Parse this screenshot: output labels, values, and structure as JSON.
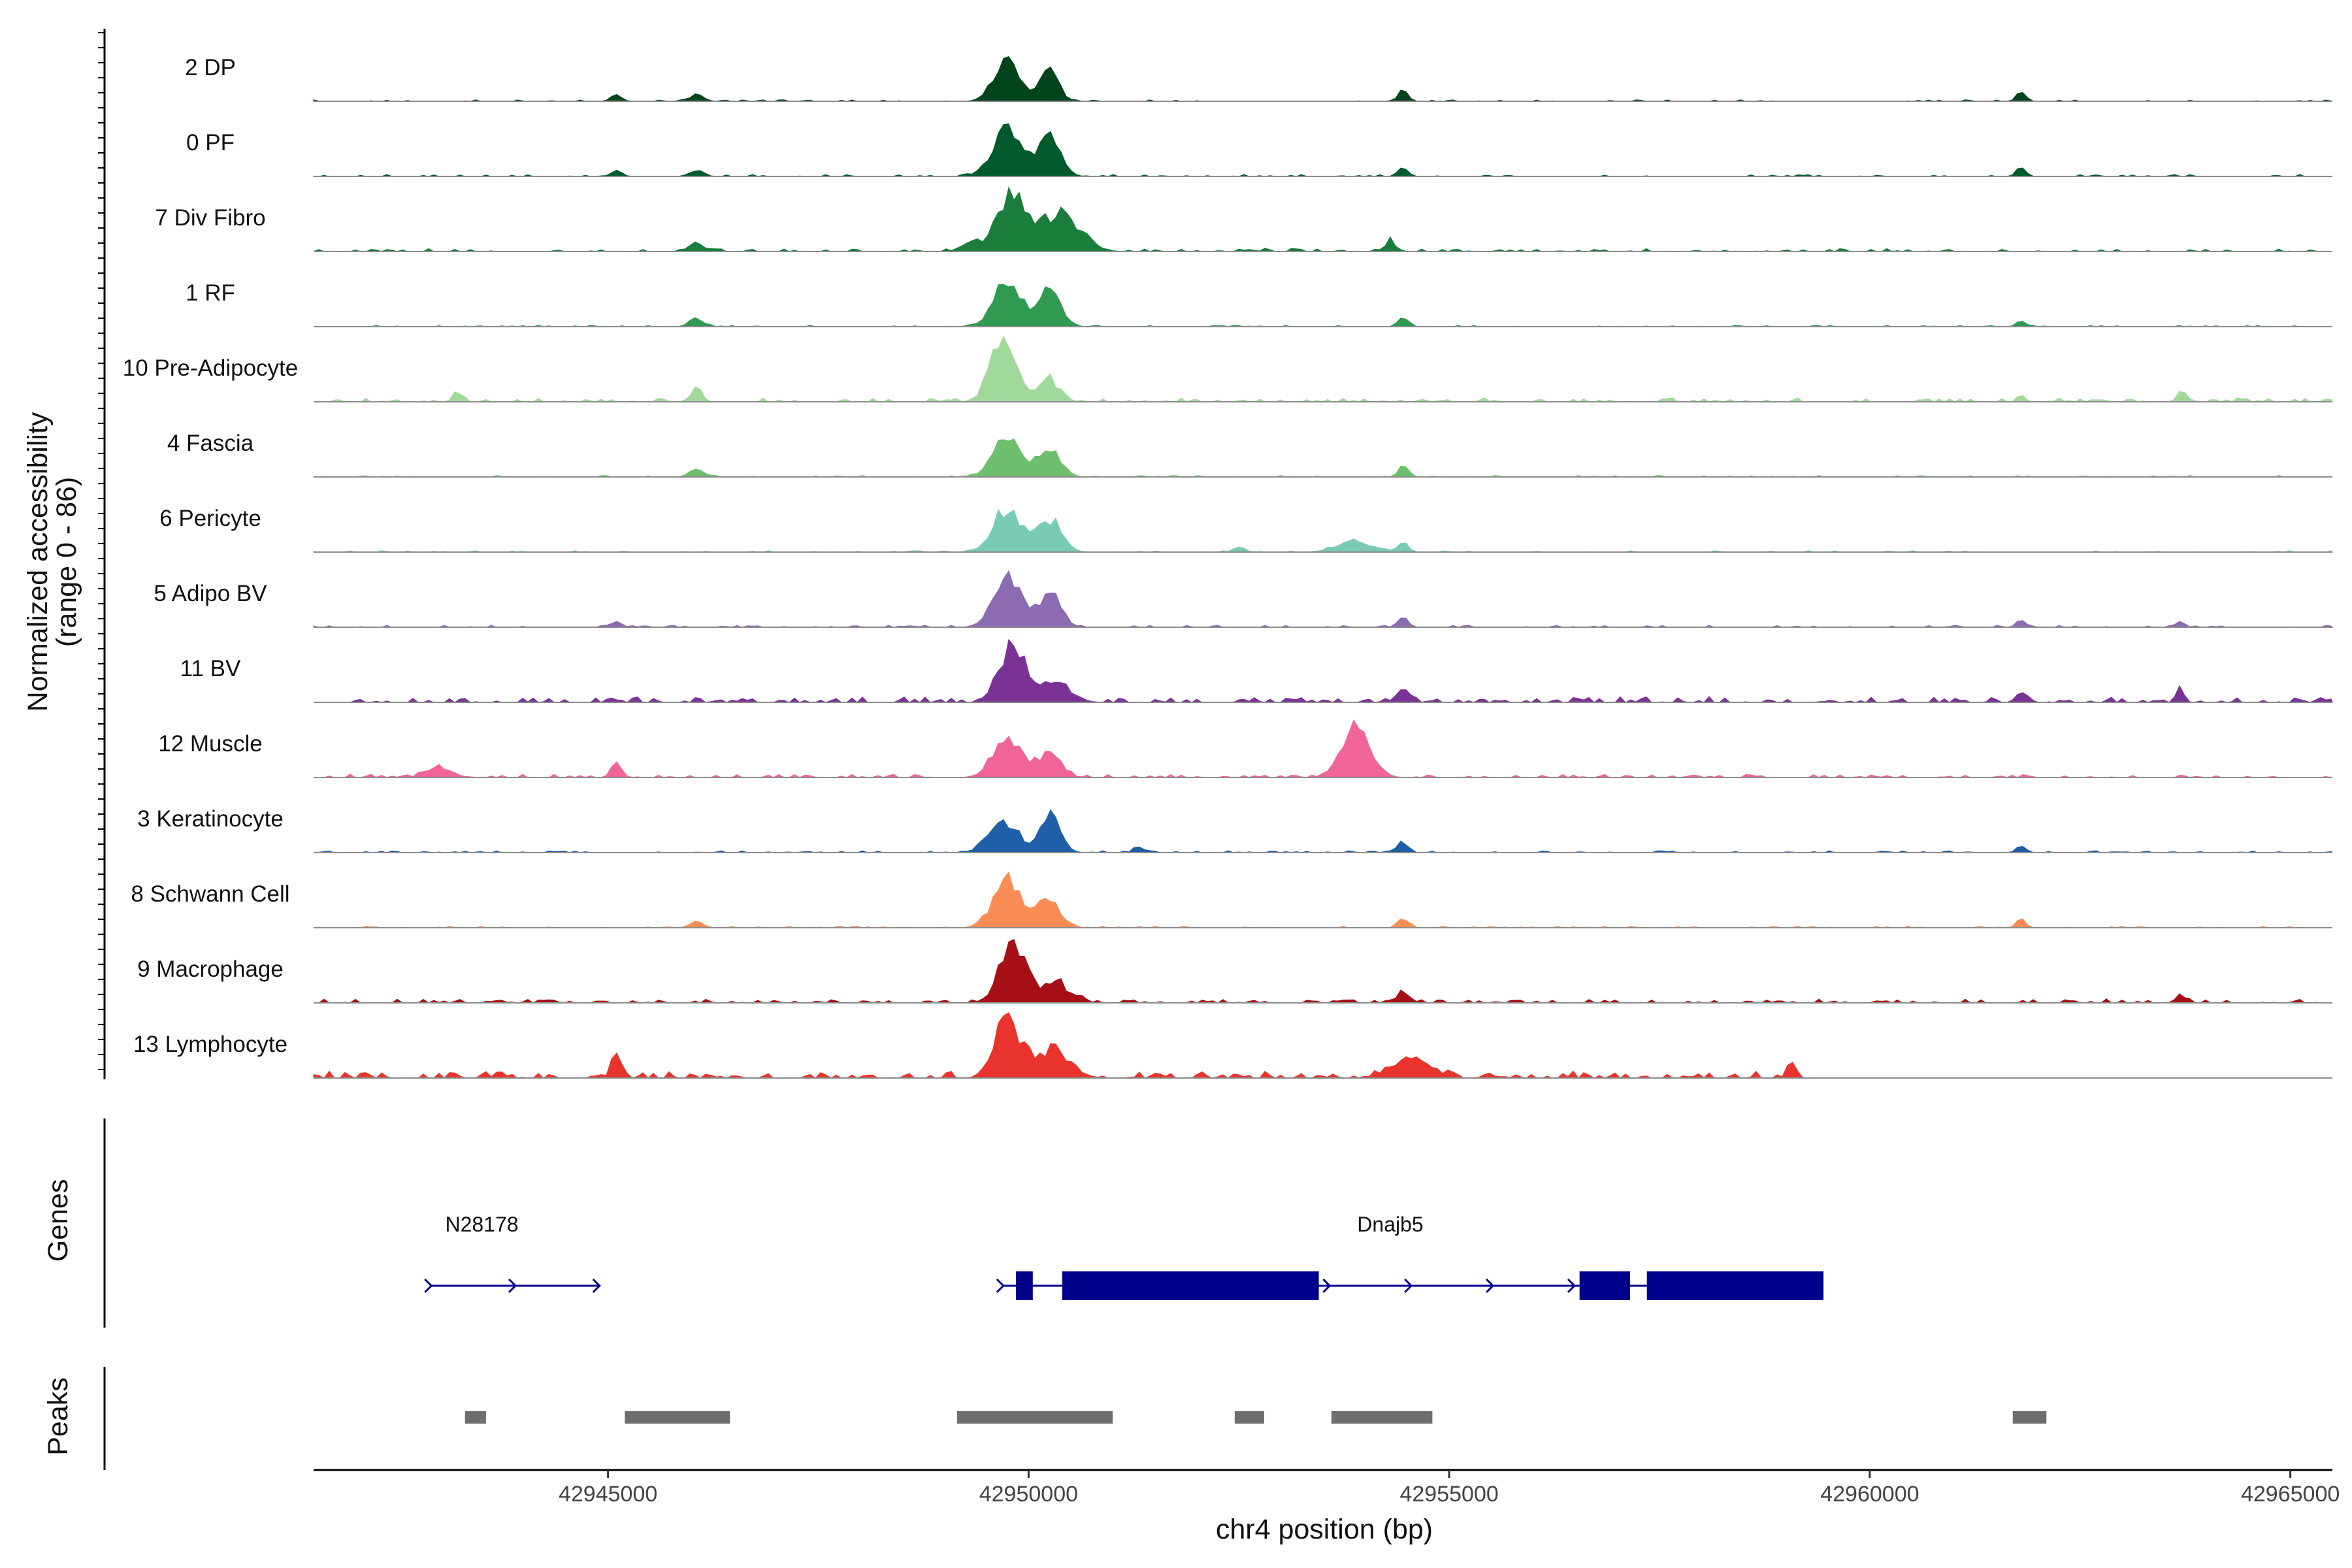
{
  "chart_data": {
    "type": "area",
    "title": "",
    "chromosome": "chr4",
    "xlabel": "chr4 position (bp)",
    "ylabel": "Normalized accessibility",
    "ylabel_range": "(range 0 - 86)",
    "ylim": [
      0,
      86
    ],
    "xlim": [
      42941500,
      42965500
    ],
    "x_ticks": [
      42945000,
      42950000,
      42955000,
      42960000,
      42965000
    ],
    "x_tick_labels": [
      "42945000",
      "42950000",
      "42955000",
      "42960000",
      "42965000"
    ],
    "tracks": [
      {
        "name": "2 DP",
        "color": "#00441b",
        "peaks": [
          [
            42949750,
            62,
            150
          ],
          [
            42950250,
            40,
            110
          ],
          [
            42954450,
            15,
            60
          ],
          [
            42961800,
            12,
            55
          ],
          [
            42945100,
            10,
            60
          ],
          [
            42946050,
            9,
            80
          ]
        ],
        "noise": 2,
        "density": 0.3
      },
      {
        "name": "0 PF",
        "color": "#005a2b",
        "peaks": [
          [
            42949750,
            68,
            170
          ],
          [
            42950250,
            50,
            130
          ],
          [
            42954450,
            12,
            60
          ],
          [
            42961800,
            11,
            55
          ],
          [
            42945100,
            9,
            60
          ],
          [
            42946050,
            9,
            80
          ]
        ],
        "noise": 2.5,
        "density": 0.3
      },
      {
        "name": "7 Div Fibro",
        "color": "#1a7d3c",
        "peaks": [
          [
            42949800,
            78,
            180
          ],
          [
            42950400,
            52,
            220
          ],
          [
            42949300,
            14,
            100
          ],
          [
            42954300,
            13,
            70
          ],
          [
            42946050,
            12,
            90
          ]
        ],
        "noise": 4,
        "density": 0.35
      },
      {
        "name": "1 RF",
        "color": "#2f9a50",
        "peaks": [
          [
            42949750,
            64,
            160
          ],
          [
            42950250,
            50,
            130
          ],
          [
            42954450,
            14,
            60
          ],
          [
            42946050,
            12,
            80
          ],
          [
            42961800,
            8,
            55
          ]
        ],
        "noise": 2,
        "density": 0.3
      },
      {
        "name": "10 Pre-Adipocyte",
        "color": "#a1d99b",
        "peaks": [
          [
            42949700,
            88,
            150
          ],
          [
            42950250,
            30,
            120
          ],
          [
            42946050,
            22,
            60
          ],
          [
            42943200,
            10,
            50
          ],
          [
            42963700,
            12,
            50
          ],
          [
            42961800,
            9,
            45
          ]
        ],
        "noise": 5,
        "density": 0.45
      },
      {
        "name": "4 Fascia",
        "color": "#6dbf6d",
        "peaks": [
          [
            42949750,
            52,
            170
          ],
          [
            42950250,
            38,
            130
          ],
          [
            42954450,
            14,
            60
          ],
          [
            42946050,
            12,
            80
          ]
        ],
        "noise": 2,
        "density": 0.3
      },
      {
        "name": "6 Pericyte",
        "color": "#7acbb6",
        "peaks": [
          [
            42949750,
            60,
            170
          ],
          [
            42950250,
            44,
            140
          ],
          [
            42953900,
            14,
            220
          ],
          [
            42954450,
            14,
            60
          ],
          [
            42952500,
            8,
            60
          ]
        ],
        "noise": 2,
        "density": 0.3
      },
      {
        "name": "5 Adipo BV",
        "color": "#8c6bb1",
        "peaks": [
          [
            42949750,
            78,
            160
          ],
          [
            42950250,
            48,
            130
          ],
          [
            42954450,
            14,
            60
          ],
          [
            42961800,
            10,
            55
          ],
          [
            42963700,
            8,
            45
          ],
          [
            42945100,
            9,
            60
          ]
        ],
        "noise": 2.5,
        "density": 0.3
      },
      {
        "name": "11 BV",
        "color": "#7a3394",
        "peaks": [
          [
            42949800,
            76,
            150
          ],
          [
            42950300,
            30,
            180
          ],
          [
            42954450,
            18,
            80
          ],
          [
            42963700,
            20,
            40
          ],
          [
            42961800,
            14,
            60
          ]
        ],
        "noise": 7,
        "density": 0.5
      },
      {
        "name": "12 Muscle",
        "color": "#f0649a",
        "peaks": [
          [
            42949750,
            50,
            170
          ],
          [
            42950250,
            34,
            130
          ],
          [
            42953900,
            78,
            160
          ],
          [
            42945100,
            20,
            60
          ],
          [
            42943000,
            12,
            150
          ]
        ],
        "noise": 4,
        "density": 0.45
      },
      {
        "name": "3 Keratinocyte",
        "color": "#1f5fa8",
        "peaks": [
          [
            42949700,
            46,
            170
          ],
          [
            42950250,
            52,
            120
          ],
          [
            42954450,
            16,
            60
          ],
          [
            42951300,
            10,
            50
          ],
          [
            42961800,
            9,
            55
          ]
        ],
        "noise": 2.5,
        "density": 0.35
      },
      {
        "name": "8 Schwann Cell",
        "color": "#f98d55",
        "peaks": [
          [
            42949750,
            65,
            170
          ],
          [
            42950250,
            40,
            130
          ],
          [
            42954450,
            14,
            60
          ],
          [
            42961800,
            12,
            55
          ],
          [
            42946050,
            8,
            80
          ]
        ],
        "noise": 2,
        "density": 0.3
      },
      {
        "name": "9 Macrophage",
        "color": "#a50f15",
        "peaks": [
          [
            42949800,
            82,
            150
          ],
          [
            42950300,
            28,
            180
          ],
          [
            42954450,
            14,
            80
          ],
          [
            42963700,
            10,
            60
          ]
        ],
        "noise": 5,
        "density": 0.5
      },
      {
        "name": "13 Lymphocyte",
        "color": "#e8342c",
        "peaks": [
          [
            42949750,
            84,
            150
          ],
          [
            42950300,
            34,
            200
          ],
          [
            42954550,
            30,
            220
          ],
          [
            42945100,
            26,
            60
          ],
          [
            42959100,
            14,
            70
          ]
        ],
        "noise": 9,
        "density": 0.55,
        "xmax": 42959200
      }
    ],
    "genes_label": "Genes",
    "genes": [
      {
        "name": "N28178",
        "label_pos": 42943500,
        "strand": "+",
        "start": 42942900,
        "end": 42944900,
        "exons": []
      },
      {
        "name": "Dnajb5",
        "label_pos": 42954300,
        "strand": "+",
        "start": 42949700,
        "end": 42959400,
        "exons": [
          [
            42949850,
            42950050
          ],
          [
            42950400,
            42953450
          ],
          [
            42956550,
            42957150
          ],
          [
            42957350,
            42959450
          ]
        ]
      }
    ],
    "peaks_label": "Peaks",
    "peak_regions": [
      [
        42943300,
        42943550
      ],
      [
        42945200,
        42946450
      ],
      [
        42949150,
        42951000
      ],
      [
        42952450,
        42952800
      ],
      [
        42953600,
        42954800
      ],
      [
        42961700,
        42962100
      ]
    ]
  }
}
